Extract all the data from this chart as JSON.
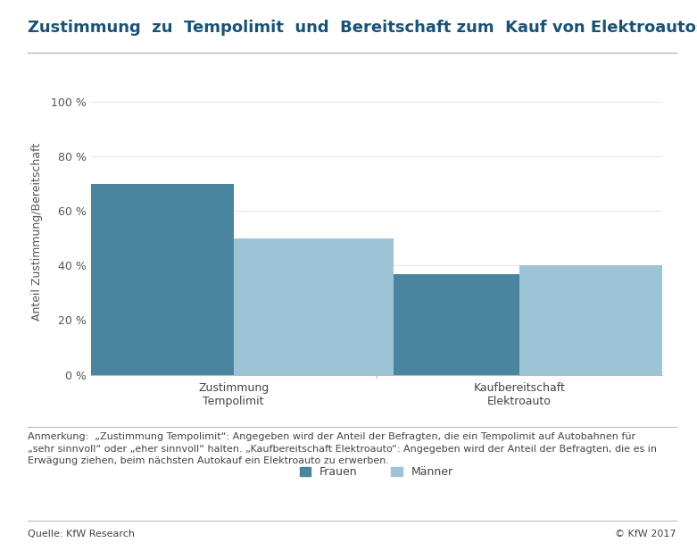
{
  "title": "Zustimmung  zu  Tempolimit  und  Bereitschaft zum  Kauf von Elektroautos",
  "categories": [
    "Zustimmung\nTempolimit",
    "Kaufbereitschaft\nElektroauto"
  ],
  "frauen_values": [
    70,
    37
  ],
  "maenner_values": [
    50,
    40
  ],
  "frauen_color": "#4a85a0",
  "maenner_color": "#9cc4d6",
  "ylabel": "Anteil Zustimmung/Bereitschaft",
  "yticks": [
    0,
    20,
    40,
    60,
    80,
    100
  ],
  "ytick_labels": [
    "0 %",
    "20 %",
    "40 %",
    "60 %",
    "80 %",
    "100 %"
  ],
  "ylim": [
    0,
    105
  ],
  "legend_frauen": "Frauen",
  "legend_maenner": "Männer",
  "annotation": "Anmerkung:  „Zustimmung Tempolimit“: Angegeben wird der Anteil der Befragten, die ein Tempolimit auf Autobahnen für\n„sehr sinnvoll“ oder „eher sinnvoll“ halten. „Kaufbereitschaft Elektroauto“: Angegeben wird der Anteil der Befragten, die es in\nErwägung ziehen, beim nächsten Autokauf ein Elektroauto zu erwerben.",
  "source_left": "Quelle: KfW Research",
  "source_right": "© KfW 2017",
  "background_color": "#ffffff",
  "title_color": "#1a5276",
  "axis_line_color": "#bbbbbb",
  "bar_width": 0.28,
  "title_fontsize": 13,
  "label_fontsize": 9,
  "tick_fontsize": 9,
  "ylabel_fontsize": 9,
  "legend_fontsize": 9,
  "annotation_fontsize": 8,
  "source_fontsize": 8
}
